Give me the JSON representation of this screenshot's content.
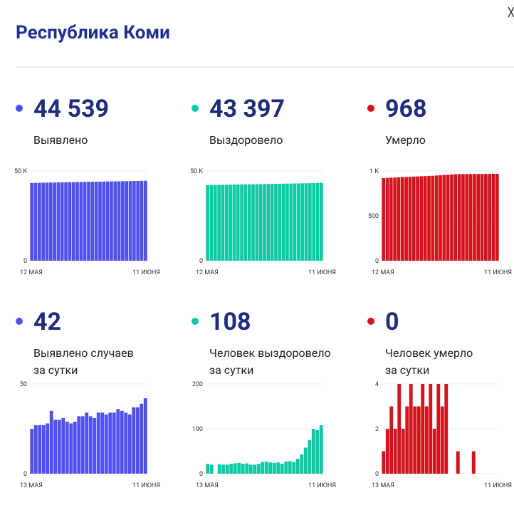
{
  "title": "Республика Коми",
  "chart_data": [
    {
      "type": "bar",
      "headline": "44 539",
      "label": [
        "Выявлено"
      ],
      "color": "#5050ef",
      "ylim": [
        0,
        50000
      ],
      "yticks": [
        0,
        {
          "value": 50000,
          "label": "50 K"
        }
      ],
      "categories": [
        "12 МАЯ",
        null,
        null,
        null,
        null,
        null,
        null,
        null,
        null,
        null,
        null,
        null,
        null,
        null,
        null,
        null,
        null,
        null,
        null,
        null,
        null,
        null,
        null,
        null,
        null,
        null,
        null,
        null,
        null,
        null,
        "11 ИЮНЯ"
      ],
      "values": [
        43330,
        43370,
        43410,
        43450,
        43490,
        43530,
        43570,
        43610,
        43650,
        43690,
        43730,
        43770,
        43810,
        43850,
        43890,
        43930,
        43970,
        44010,
        44050,
        44090,
        44130,
        44170,
        44210,
        44250,
        44290,
        44330,
        44370,
        44410,
        44450,
        44497,
        44539
      ]
    },
    {
      "type": "bar",
      "headline": "43 397",
      "label": [
        "Выздоровело"
      ],
      "color": "#0ec9a3",
      "ylim": [
        0,
        50000
      ],
      "yticks": [
        0,
        {
          "value": 50000,
          "label": "50 K"
        }
      ],
      "categories": [
        "12 МАЯ",
        null,
        null,
        null,
        null,
        null,
        null,
        null,
        null,
        null,
        null,
        null,
        null,
        null,
        null,
        null,
        null,
        null,
        null,
        null,
        null,
        null,
        null,
        null,
        null,
        null,
        null,
        null,
        null,
        null,
        "11 ИЮНЯ"
      ],
      "values": [
        42100,
        42140,
        42180,
        42220,
        42260,
        42300,
        42340,
        42380,
        42420,
        42460,
        42500,
        42540,
        42580,
        42620,
        42660,
        42700,
        42740,
        42780,
        42820,
        42860,
        42900,
        42940,
        42980,
        43020,
        43060,
        43100,
        43140,
        43180,
        43220,
        43300,
        43397
      ]
    },
    {
      "type": "bar",
      "headline": "968",
      "label": [
        "Умерло"
      ],
      "color": "#d0151c",
      "ylim": [
        0,
        1000
      ],
      "yticks": [
        0,
        500,
        {
          "value": 1000,
          "label": "1 K"
        }
      ],
      "categories": [
        "12 МАЯ",
        null,
        null,
        null,
        null,
        null,
        null,
        null,
        null,
        null,
        null,
        null,
        null,
        null,
        null,
        null,
        null,
        null,
        null,
        null,
        null,
        null,
        null,
        null,
        null,
        null,
        null,
        null,
        null,
        null,
        "11 ИЮНЯ"
      ],
      "values": [
        921,
        923,
        925,
        927,
        929,
        931,
        933,
        935,
        937,
        939,
        941,
        943,
        945,
        947,
        949,
        952,
        955,
        958,
        961,
        964,
        964,
        965,
        965,
        966,
        966,
        966,
        967,
        967,
        967,
        968,
        968
      ]
    },
    {
      "type": "bar",
      "headline": "42",
      "label": [
        "Выявлено случаев",
        "за сутки"
      ],
      "color": "#5050ef",
      "ylim": [
        0,
        50
      ],
      "yticks": [
        0,
        50
      ],
      "categories": [
        "13 МАЯ",
        null,
        null,
        null,
        null,
        null,
        null,
        null,
        null,
        null,
        null,
        null,
        null,
        null,
        null,
        null,
        null,
        null,
        null,
        null,
        null,
        null,
        null,
        null,
        null,
        null,
        null,
        null,
        null,
        "11 ИЮНЯ"
      ],
      "values": [
        25,
        27,
        27,
        27,
        28,
        35,
        30,
        30,
        31,
        29,
        28,
        29,
        32,
        32,
        34,
        32,
        31,
        34,
        34,
        33,
        34,
        34,
        36,
        35,
        34,
        33,
        37,
        37,
        39,
        42
      ]
    },
    {
      "type": "bar",
      "headline": "108",
      "label": [
        "Человек выздоровело",
        "за сутки"
      ],
      "color": "#0ec9a3",
      "ylim": [
        0,
        200
      ],
      "yticks": [
        0,
        100,
        200
      ],
      "categories": [
        "13 МАЯ",
        null,
        null,
        null,
        null,
        null,
        null,
        null,
        null,
        null,
        null,
        null,
        null,
        null,
        null,
        null,
        null,
        null,
        null,
        null,
        null,
        null,
        null,
        null,
        null,
        null,
        null,
        null,
        null,
        "11 ИЮНЯ"
      ],
      "values": [
        22,
        20,
        0,
        21,
        20,
        20,
        22,
        23,
        24,
        22,
        23,
        20,
        20,
        22,
        26,
        27,
        25,
        24,
        25,
        22,
        27,
        28,
        26,
        33,
        43,
        58,
        75,
        100,
        97,
        108
      ]
    },
    {
      "type": "bar",
      "headline": "0",
      "label": [
        "Человек умерло",
        "за сутки"
      ],
      "color": "#d0151c",
      "ylim": [
        0,
        4
      ],
      "yticks": [
        0,
        2,
        4
      ],
      "categories": [
        "13 МАЯ",
        null,
        null,
        null,
        null,
        null,
        null,
        null,
        null,
        null,
        null,
        null,
        null,
        null,
        null,
        null,
        null,
        null,
        null,
        null,
        null,
        null,
        null,
        null,
        null,
        null,
        null,
        null,
        null,
        "11 ИЮНЯ"
      ],
      "values": [
        1,
        2,
        3,
        2,
        4,
        2,
        3,
        4,
        3,
        3,
        4,
        3,
        4,
        2,
        4,
        3,
        4,
        0,
        0,
        1,
        0,
        0,
        0,
        1,
        0,
        0,
        0,
        0,
        0,
        0
      ]
    }
  ]
}
